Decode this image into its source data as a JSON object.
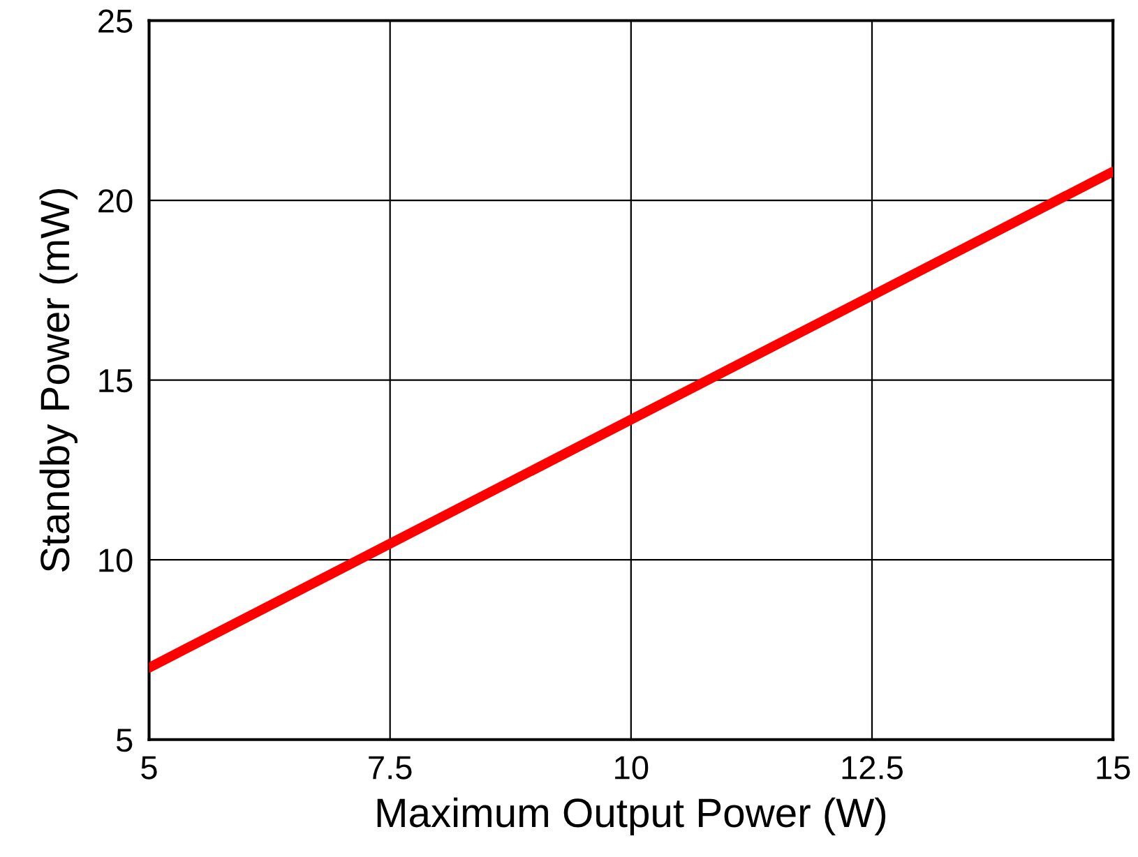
{
  "chart_data": {
    "type": "line",
    "xlabel": "Maximum Output Power (W)",
    "ylabel": "Standby Power (mW)",
    "x": [
      5,
      7.5,
      10,
      12.5,
      15
    ],
    "series": [
      {
        "color": "#ff0000",
        "values": [
          7.0,
          10.45,
          13.9,
          17.35,
          20.8
        ]
      }
    ],
    "xlim": [
      5,
      15
    ],
    "xticks": [
      5,
      7.5,
      10,
      12.5,
      15
    ],
    "ylim": [
      5,
      25
    ],
    "yticks": [
      5,
      10,
      15,
      20,
      25
    ],
    "grid": true,
    "line_style": "solid"
  }
}
